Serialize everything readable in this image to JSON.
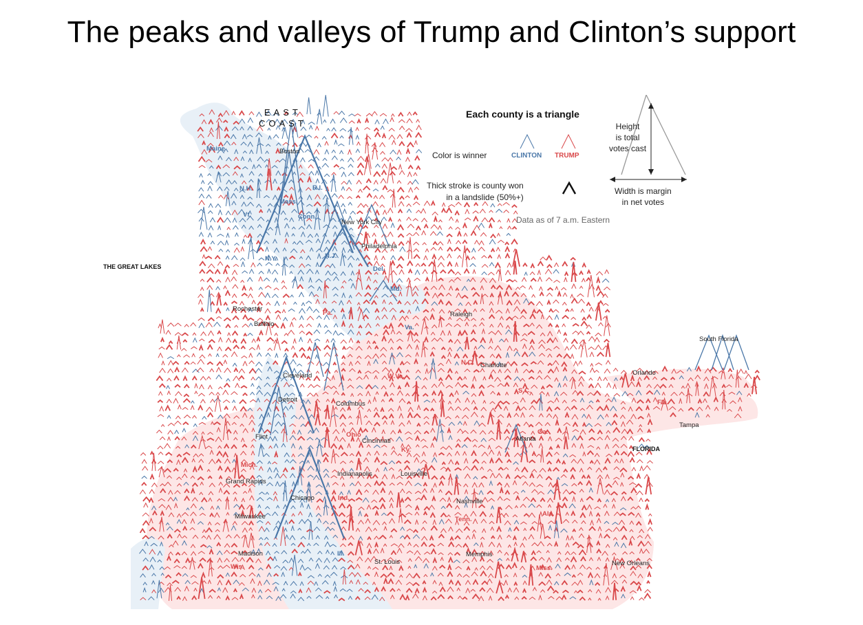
{
  "title": "The peaks and valleys of Trump and Clinton’s support",
  "map": {
    "region_labels": {
      "east_coast": "EAST\nCOAST",
      "great_lakes": "THE GREAT LAKES",
      "florida": "FLORIDA"
    },
    "states": {
      "maine": "Maine",
      "nh": "N.H.",
      "vt": "Vt.",
      "mass": "Mass.",
      "ri": "R.I.",
      "conn": "Conn.",
      "ny": "N.Y.",
      "nj": "N.J.",
      "del": "Del.",
      "md": "Md.",
      "pa": "Pa.",
      "va": "Va.",
      "nc": "N.C.",
      "wva": "W.Va.",
      "sc": "S.C.",
      "ga": "Ga.",
      "fla": "Fla.",
      "ohio": "Ohio",
      "ky": "Ky.",
      "mich": "Mich.",
      "ind": "Ind.",
      "tenn": "Tenn.",
      "ala": "Ala.",
      "ill": "Ill.",
      "wis": "Wis.",
      "miss": "Miss."
    },
    "cities": {
      "boston": "Boston",
      "nyc": "New York City",
      "philadelphia": "Philadelphia",
      "rochester": "Rochester",
      "buffalo": "Buffalo",
      "raleigh": "Raleigh",
      "south_florida": "South Florida",
      "charlotte": "Charlotte",
      "orlando": "Orlando",
      "cleveland": "Cleveland",
      "detroit": "Detroit",
      "columbus": "Columbus",
      "tampa": "Tampa",
      "flint": "Flint",
      "cincinnati": "Cincinnati",
      "atlanta": "Atlanta",
      "indianapolis": "Indianapolis",
      "louisville": "Louisville",
      "grand_rapids": "Grand Rapids",
      "chicago": "Chicago",
      "nashville": "Nashville",
      "milwaukee": "Milwaukee",
      "madison": "Madison",
      "memphis": "Memphis",
      "st_louis": "St. Louis",
      "new_orleans": "New Orleans"
    }
  },
  "legend": {
    "title": "Each county is a triangle",
    "color_is_winner": "Color is winner",
    "clinton": "CLINTON",
    "trump": "TRUMP",
    "thick_stroke": "Thick stroke is county won\nin a landslide (50%+)",
    "height": "Height\nis total\nvotes cast",
    "width": "Width is margin\nin net votes",
    "data_note": "Data as of 7 a.m. Eastern"
  },
  "colors": {
    "clinton": "#4a77a8",
    "trump": "#d9484a",
    "clinton_area": "#e8f0f7",
    "trump_area": "#fde6e6"
  }
}
